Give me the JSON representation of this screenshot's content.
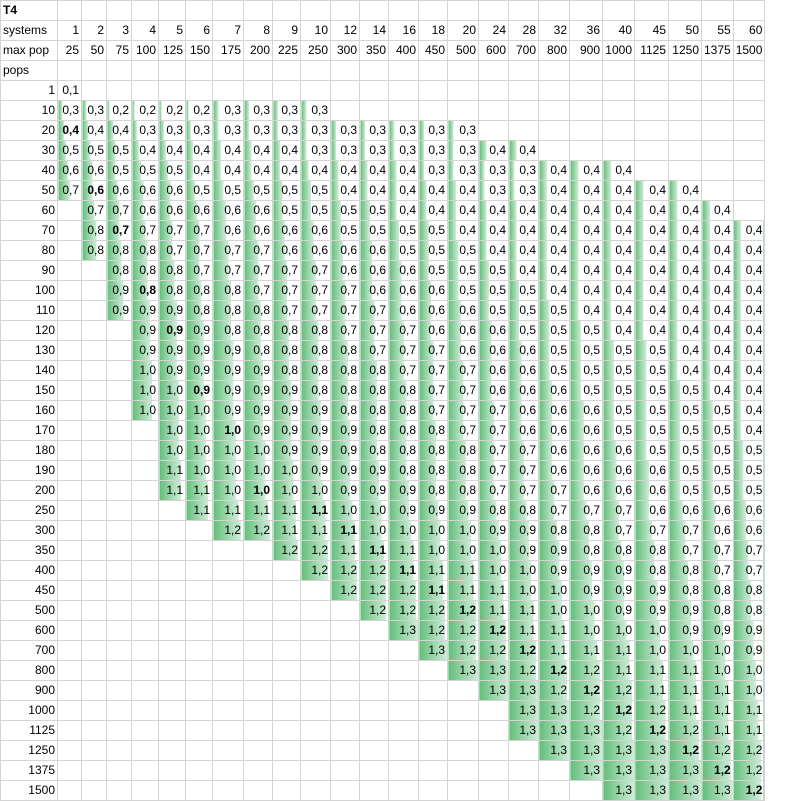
{
  "sheet": {
    "title": "T4",
    "systems_label": "systems",
    "maxpop_label": "max pop",
    "pops_label": "pops",
    "systems": [
      "1",
      "2",
      "3",
      "4",
      "5",
      "6",
      "7",
      "8",
      "9",
      "10",
      "12",
      "14",
      "16",
      "18",
      "20",
      "24",
      "28",
      "32",
      "36",
      "40",
      "45",
      "50",
      "55",
      "60"
    ],
    "maxpop": [
      "25",
      "50",
      "75",
      "100",
      "125",
      "150",
      "175",
      "200",
      "225",
      "250",
      "300",
      "350",
      "400",
      "450",
      "500",
      "600",
      "700",
      "800",
      "900",
      "1000",
      "1125",
      "1250",
      "1375",
      "1500"
    ],
    "bar_color": "#63be7b",
    "rows": [
      {
        "pops": "1",
        "cells": [
          "0,1",
          "",
          "",
          "",
          "",
          "",
          "",
          "",
          "",
          "",
          "",
          "",
          "",
          "",
          "",
          "",
          "",
          "",
          "",
          "",
          "",
          "",
          "",
          ""
        ],
        "bold": -1
      },
      {
        "pops": "10",
        "cells": [
          "0,3",
          "0,3",
          "0,2",
          "0,2",
          "0,2",
          "0,2",
          "0,3",
          "0,3",
          "0,3",
          "0,3",
          "",
          "",
          "",
          "",
          "",
          "",
          "",
          "",
          "",
          "",
          "",
          "",
          "",
          ""
        ],
        "bold": -1
      },
      {
        "pops": "20",
        "cells": [
          "0,4",
          "0,4",
          "0,4",
          "0,3",
          "0,3",
          "0,3",
          "0,3",
          "0,3",
          "0,3",
          "0,3",
          "0,3",
          "0,3",
          "0,3",
          "0,3",
          "0,3",
          "",
          "",
          "",
          "",
          "",
          "",
          "",
          "",
          ""
        ],
        "bold": 0
      },
      {
        "pops": "30",
        "cells": [
          "0,5",
          "0,5",
          "0,5",
          "0,4",
          "0,4",
          "0,4",
          "0,4",
          "0,4",
          "0,4",
          "0,3",
          "0,3",
          "0,3",
          "0,3",
          "0,3",
          "0,3",
          "0,4",
          "0,4",
          "",
          "",
          "",
          "",
          "",
          "",
          ""
        ],
        "bold": -1
      },
      {
        "pops": "40",
        "cells": [
          "0,6",
          "0,6",
          "0,5",
          "0,5",
          "0,5",
          "0,4",
          "0,4",
          "0,4",
          "0,4",
          "0,4",
          "0,4",
          "0,4",
          "0,4",
          "0,3",
          "0,3",
          "0,3",
          "0,3",
          "0,4",
          "0,4",
          "0,4",
          "",
          "",
          "",
          ""
        ],
        "bold": -1
      },
      {
        "pops": "50",
        "cells": [
          "0,7",
          "0,6",
          "0,6",
          "0,6",
          "0,6",
          "0,5",
          "0,5",
          "0,5",
          "0,5",
          "0,5",
          "0,4",
          "0,4",
          "0,4",
          "0,4",
          "0,4",
          "0,3",
          "0,3",
          "0,4",
          "0,4",
          "0,4",
          "0,4",
          "0,4",
          "",
          ""
        ],
        "bold": 1
      },
      {
        "pops": "60",
        "cells": [
          "",
          "0,7",
          "0,7",
          "0,6",
          "0,6",
          "0,6",
          "0,6",
          "0,6",
          "0,5",
          "0,5",
          "0,5",
          "0,5",
          "0,4",
          "0,4",
          "0,4",
          "0,4",
          "0,4",
          "0,4",
          "0,4",
          "0,4",
          "0,4",
          "0,4",
          "0,4",
          ""
        ],
        "bold": -1
      },
      {
        "pops": "70",
        "cells": [
          "",
          "0,8",
          "0,7",
          "0,7",
          "0,7",
          "0,7",
          "0,6",
          "0,6",
          "0,6",
          "0,6",
          "0,5",
          "0,5",
          "0,5",
          "0,5",
          "0,4",
          "0,4",
          "0,4",
          "0,4",
          "0,4",
          "0,4",
          "0,4",
          "0,4",
          "0,4",
          "0,4"
        ],
        "bold": 2
      },
      {
        "pops": "80",
        "cells": [
          "",
          "0,8",
          "0,8",
          "0,8",
          "0,7",
          "0,7",
          "0,7",
          "0,7",
          "0,6",
          "0,6",
          "0,6",
          "0,6",
          "0,5",
          "0,5",
          "0,5",
          "0,4",
          "0,4",
          "0,4",
          "0,4",
          "0,4",
          "0,4",
          "0,4",
          "0,4",
          "0,4"
        ],
        "bold": -1
      },
      {
        "pops": "90",
        "cells": [
          "",
          "",
          "0,8",
          "0,8",
          "0,8",
          "0,7",
          "0,7",
          "0,7",
          "0,7",
          "0,7",
          "0,6",
          "0,6",
          "0,6",
          "0,5",
          "0,5",
          "0,5",
          "0,4",
          "0,4",
          "0,4",
          "0,4",
          "0,4",
          "0,4",
          "0,4",
          "0,4"
        ],
        "bold": -1
      },
      {
        "pops": "100",
        "cells": [
          "",
          "",
          "0,9",
          "0,8",
          "0,8",
          "0,8",
          "0,8",
          "0,7",
          "0,7",
          "0,7",
          "0,7",
          "0,6",
          "0,6",
          "0,6",
          "0,5",
          "0,5",
          "0,5",
          "0,4",
          "0,4",
          "0,4",
          "0,4",
          "0,4",
          "0,4",
          "0,4"
        ],
        "bold": 3
      },
      {
        "pops": "110",
        "cells": [
          "",
          "",
          "0,9",
          "0,9",
          "0,9",
          "0,8",
          "0,8",
          "0,8",
          "0,7",
          "0,7",
          "0,7",
          "0,7",
          "0,6",
          "0,6",
          "0,6",
          "0,5",
          "0,5",
          "0,5",
          "0,4",
          "0,4",
          "0,4",
          "0,4",
          "0,4",
          "0,4"
        ],
        "bold": -1
      },
      {
        "pops": "120",
        "cells": [
          "",
          "",
          "",
          "0,9",
          "0,9",
          "0,9",
          "0,8",
          "0,8",
          "0,8",
          "0,8",
          "0,7",
          "0,7",
          "0,7",
          "0,6",
          "0,6",
          "0,6",
          "0,5",
          "0,5",
          "0,5",
          "0,4",
          "0,4",
          "0,4",
          "0,4",
          "0,4"
        ],
        "bold": 4
      },
      {
        "pops": "130",
        "cells": [
          "",
          "",
          "",
          "0,9",
          "0,9",
          "0,9",
          "0,9",
          "0,8",
          "0,8",
          "0,8",
          "0,8",
          "0,7",
          "0,7",
          "0,7",
          "0,6",
          "0,6",
          "0,6",
          "0,5",
          "0,5",
          "0,5",
          "0,5",
          "0,4",
          "0,4",
          "0,4"
        ],
        "bold": -1
      },
      {
        "pops": "140",
        "cells": [
          "",
          "",
          "",
          "1,0",
          "0,9",
          "0,9",
          "0,9",
          "0,9",
          "0,8",
          "0,8",
          "0,8",
          "0,8",
          "0,7",
          "0,7",
          "0,7",
          "0,6",
          "0,6",
          "0,5",
          "0,5",
          "0,5",
          "0,5",
          "0,4",
          "0,4",
          "0,4"
        ],
        "bold": -1
      },
      {
        "pops": "150",
        "cells": [
          "",
          "",
          "",
          "1,0",
          "1,0",
          "0,9",
          "0,9",
          "0,9",
          "0,9",
          "0,8",
          "0,8",
          "0,8",
          "0,8",
          "0,7",
          "0,7",
          "0,6",
          "0,6",
          "0,6",
          "0,5",
          "0,5",
          "0,5",
          "0,5",
          "0,4",
          "0,4"
        ],
        "bold": 5
      },
      {
        "pops": "160",
        "cells": [
          "",
          "",
          "",
          "1,0",
          "1,0",
          "1,0",
          "0,9",
          "0,9",
          "0,9",
          "0,9",
          "0,8",
          "0,8",
          "0,8",
          "0,7",
          "0,7",
          "0,7",
          "0,6",
          "0,6",
          "0,6",
          "0,5",
          "0,5",
          "0,5",
          "0,5",
          "0,4"
        ],
        "bold": -1
      },
      {
        "pops": "170",
        "cells": [
          "",
          "",
          "",
          "",
          "1,0",
          "1,0",
          "1,0",
          "0,9",
          "0,9",
          "0,9",
          "0,9",
          "0,8",
          "0,8",
          "0,8",
          "0,7",
          "0,7",
          "0,6",
          "0,6",
          "0,6",
          "0,5",
          "0,5",
          "0,5",
          "0,5",
          "0,4"
        ],
        "bold": 6
      },
      {
        "pops": "180",
        "cells": [
          "",
          "",
          "",
          "",
          "1,0",
          "1,0",
          "1,0",
          "1,0",
          "0,9",
          "0,9",
          "0,9",
          "0,8",
          "0,8",
          "0,8",
          "0,8",
          "0,7",
          "0,7",
          "0,6",
          "0,6",
          "0,6",
          "0,5",
          "0,5",
          "0,5",
          "0,5"
        ],
        "bold": -1
      },
      {
        "pops": "190",
        "cells": [
          "",
          "",
          "",
          "",
          "1,1",
          "1,0",
          "1,0",
          "1,0",
          "1,0",
          "0,9",
          "0,9",
          "0,9",
          "0,8",
          "0,8",
          "0,8",
          "0,7",
          "0,7",
          "0,6",
          "0,6",
          "0,6",
          "0,6",
          "0,5",
          "0,5",
          "0,5"
        ],
        "bold": -1
      },
      {
        "pops": "200",
        "cells": [
          "",
          "",
          "",
          "",
          "1,1",
          "1,1",
          "1,0",
          "1,0",
          "1,0",
          "1,0",
          "0,9",
          "0,9",
          "0,9",
          "0,8",
          "0,8",
          "0,7",
          "0,7",
          "0,7",
          "0,6",
          "0,6",
          "0,6",
          "0,5",
          "0,5",
          "0,5"
        ],
        "bold": 7
      },
      {
        "pops": "250",
        "cells": [
          "",
          "",
          "",
          "",
          "",
          "1,1",
          "1,1",
          "1,1",
          "1,1",
          "1,1",
          "1,0",
          "1,0",
          "0,9",
          "0,9",
          "0,9",
          "0,8",
          "0,8",
          "0,7",
          "0,7",
          "0,7",
          "0,6",
          "0,6",
          "0,6",
          "0,6"
        ],
        "bold": 9
      },
      {
        "pops": "300",
        "cells": [
          "",
          "",
          "",
          "",
          "",
          "",
          "1,2",
          "1,2",
          "1,1",
          "1,1",
          "1,1",
          "1,0",
          "1,0",
          "1,0",
          "1,0",
          "0,9",
          "0,9",
          "0,8",
          "0,8",
          "0,7",
          "0,7",
          "0,7",
          "0,6",
          "0,6"
        ],
        "bold": 10
      },
      {
        "pops": "350",
        "cells": [
          "",
          "",
          "",
          "",
          "",
          "",
          "",
          "",
          "1,2",
          "1,2",
          "1,1",
          "1,1",
          "1,1",
          "1,0",
          "1,0",
          "1,0",
          "0,9",
          "0,9",
          "0,8",
          "0,8",
          "0,8",
          "0,7",
          "0,7",
          "0,7"
        ],
        "bold": 11
      },
      {
        "pops": "400",
        "cells": [
          "",
          "",
          "",
          "",
          "",
          "",
          "",
          "",
          "",
          "1,2",
          "1,2",
          "1,2",
          "1,1",
          "1,1",
          "1,1",
          "1,0",
          "1,0",
          "0,9",
          "0,9",
          "0,9",
          "0,8",
          "0,8",
          "0,7",
          "0,7"
        ],
        "bold": 12
      },
      {
        "pops": "450",
        "cells": [
          "",
          "",
          "",
          "",
          "",
          "",
          "",
          "",
          "",
          "",
          "1,2",
          "1,2",
          "1,2",
          "1,1",
          "1,1",
          "1,1",
          "1,0",
          "1,0",
          "0,9",
          "0,9",
          "0,9",
          "0,8",
          "0,8",
          "0,8"
        ],
        "bold": 13
      },
      {
        "pops": "500",
        "cells": [
          "",
          "",
          "",
          "",
          "",
          "",
          "",
          "",
          "",
          "",
          "",
          "1,2",
          "1,2",
          "1,2",
          "1,2",
          "1,1",
          "1,1",
          "1,0",
          "1,0",
          "0,9",
          "0,9",
          "0,9",
          "0,8",
          "0,8"
        ],
        "bold": 14
      },
      {
        "pops": "600",
        "cells": [
          "",
          "",
          "",
          "",
          "",
          "",
          "",
          "",
          "",
          "",
          "",
          "",
          "1,3",
          "1,2",
          "1,2",
          "1,2",
          "1,1",
          "1,1",
          "1,0",
          "1,0",
          "1,0",
          "0,9",
          "0,9",
          "0,9"
        ],
        "bold": 15
      },
      {
        "pops": "700",
        "cells": [
          "",
          "",
          "",
          "",
          "",
          "",
          "",
          "",
          "",
          "",
          "",
          "",
          "",
          "1,3",
          "1,2",
          "1,2",
          "1,2",
          "1,1",
          "1,1",
          "1,1",
          "1,0",
          "1,0",
          "1,0",
          "0,9"
        ],
        "bold": 16
      },
      {
        "pops": "800",
        "cells": [
          "",
          "",
          "",
          "",
          "",
          "",
          "",
          "",
          "",
          "",
          "",
          "",
          "",
          "",
          "1,3",
          "1,3",
          "1,2",
          "1,2",
          "1,2",
          "1,1",
          "1,1",
          "1,1",
          "1,0",
          "1,0"
        ],
        "bold": 17
      },
      {
        "pops": "900",
        "cells": [
          "",
          "",
          "",
          "",
          "",
          "",
          "",
          "",
          "",
          "",
          "",
          "",
          "",
          "",
          "",
          "1,3",
          "1,3",
          "1,2",
          "1,2",
          "1,2",
          "1,1",
          "1,1",
          "1,1",
          "1,0"
        ],
        "bold": 18
      },
      {
        "pops": "1000",
        "cells": [
          "",
          "",
          "",
          "",
          "",
          "",
          "",
          "",
          "",
          "",
          "",
          "",
          "",
          "",
          "",
          "",
          "1,3",
          "1,3",
          "1,2",
          "1,2",
          "1,2",
          "1,1",
          "1,1",
          "1,1"
        ],
        "bold": 19
      },
      {
        "pops": "1125",
        "cells": [
          "",
          "",
          "",
          "",
          "",
          "",
          "",
          "",
          "",
          "",
          "",
          "",
          "",
          "",
          "",
          "",
          "1,3",
          "1,3",
          "1,3",
          "1,2",
          "1,2",
          "1,2",
          "1,1",
          "1,1"
        ],
        "bold": 20
      },
      {
        "pops": "1250",
        "cells": [
          "",
          "",
          "",
          "",
          "",
          "",
          "",
          "",
          "",
          "",
          "",
          "",
          "",
          "",
          "",
          "",
          "",
          "1,3",
          "1,3",
          "1,3",
          "1,3",
          "1,2",
          "1,2",
          "1,2"
        ],
        "bold": 21
      },
      {
        "pops": "1375",
        "cells": [
          "",
          "",
          "",
          "",
          "",
          "",
          "",
          "",
          "",
          "",
          "",
          "",
          "",
          "",
          "",
          "",
          "",
          "",
          "1,3",
          "1,3",
          "1,3",
          "1,3",
          "1,2",
          "1,2"
        ],
        "bold": 22
      },
      {
        "pops": "1500",
        "cells": [
          "",
          "",
          "",
          "",
          "",
          "",
          "",
          "",
          "",
          "",
          "",
          "",
          "",
          "",
          "",
          "",
          "",
          "",
          "",
          "1,3",
          "1,3",
          "1,3",
          "1,3",
          "1,2"
        ],
        "bold": 23
      }
    ]
  }
}
